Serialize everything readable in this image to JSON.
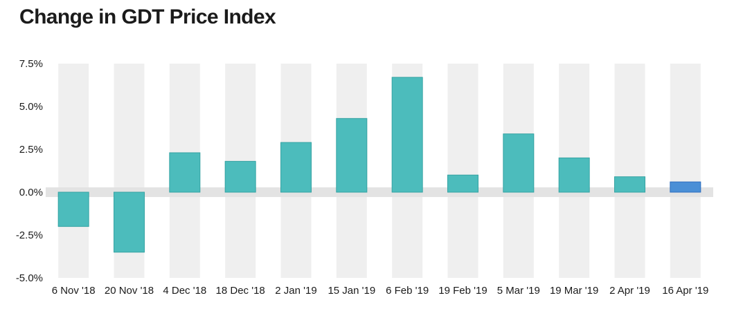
{
  "chart_data": {
    "type": "bar",
    "title": "Change in GDT Price Index",
    "categories": [
      "6 Nov '18",
      "20 Nov '18",
      "4 Dec '18",
      "18 Dec '18",
      "2 Jan '19",
      "15 Jan '19",
      "6 Feb '19",
      "19 Feb '19",
      "5 Mar '19",
      "19 Mar '19",
      "2 Apr '19",
      "16 Apr '19"
    ],
    "values": [
      -2.0,
      -3.5,
      2.3,
      1.8,
      2.9,
      4.3,
      6.7,
      1.0,
      3.4,
      2.0,
      0.9,
      0.6
    ],
    "ylim": [
      -5,
      7.5
    ],
    "yticks": [
      7.5,
      5.0,
      2.5,
      0.0,
      -2.5,
      -5.0
    ],
    "ytick_labels": [
      "7.5%",
      "5.0%",
      "2.5%",
      "0.0%",
      "-2.5%",
      "-5.0%"
    ],
    "xlabel": "",
    "ylabel": "",
    "grid": "alternating column bands",
    "colors": {
      "bar": "#4cbcbc",
      "bar_border": "#35a3a3",
      "highlight": "#4a8fd6",
      "highlight_border": "#2f6fbf",
      "band": "#efefef",
      "zero_band": "#e3e3e3"
    },
    "highlight_index": 11
  }
}
